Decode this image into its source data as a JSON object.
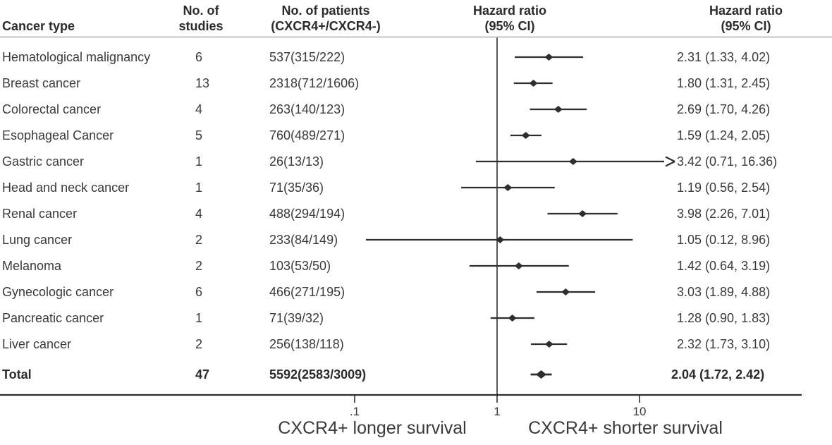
{
  "header": {
    "col_cancer_type": "Cancer type",
    "col_studies_line1": "No. of",
    "col_studies_line2": "studies",
    "col_patients_line1": "No. of patients",
    "col_patients_line2": "(CXCR4+/CXCR4-)",
    "col_plot_line1": "Hazard ratio",
    "col_plot_line2": "(95% CI)",
    "col_hr_line1": "Hazard ratio",
    "col_hr_line2": "(95% CI)"
  },
  "axis": {
    "scale_note": "log10",
    "ticks": [
      {
        "label": ".1",
        "value": 0.1
      },
      {
        "label": "1",
        "value": 1
      },
      {
        "label": "10",
        "value": 10
      }
    ],
    "left_label": "CXCR4+ longer survival",
    "right_label": "CXCR4+ shorter survival"
  },
  "colors": {
    "text": "#3a3a3a",
    "bold_text": "#2b2b2b",
    "plot_line": "#2e2e2e",
    "header_rule": "#c4c4c4",
    "background": "#ffffff"
  },
  "chart_data": {
    "type": "forest",
    "x_scale": "log10",
    "xlim": [
      0.08,
      18
    ],
    "reference_value": 1,
    "columns": [
      "Cancer type",
      "No. of studies",
      "No. of patients (CXCR4+/CXCR4-)",
      "Hazard ratio (95% CI)"
    ],
    "rows": [
      {
        "cancer_type": "Hematological malignancy",
        "studies": "6",
        "patients": "537(315/222)",
        "hr": 2.31,
        "ci_low": 1.33,
        "ci_high": 4.02,
        "hr_text": "2.31 (1.33, 4.02)",
        "is_total": false
      },
      {
        "cancer_type": "Breast cancer",
        "studies": "13",
        "patients": "2318(712/1606)",
        "hr": 1.8,
        "ci_low": 1.31,
        "ci_high": 2.45,
        "hr_text": "1.80 (1.31, 2.45)",
        "is_total": false
      },
      {
        "cancer_type": "Colorectal cancer",
        "studies": "4",
        "patients": "263(140/123)",
        "hr": 2.69,
        "ci_low": 1.7,
        "ci_high": 4.26,
        "hr_text": "2.69 (1.70, 4.26)",
        "is_total": false
      },
      {
        "cancer_type": "Esophageal Cancer",
        "studies": "5",
        "patients": "760(489/271)",
        "hr": 1.59,
        "ci_low": 1.24,
        "ci_high": 2.05,
        "hr_text": "1.59 (1.24, 2.05)",
        "is_total": false
      },
      {
        "cancer_type": "Gastric cancer",
        "studies": "1",
        "patients": "26(13/13)",
        "hr": 3.42,
        "ci_low": 0.71,
        "ci_high": 16.36,
        "hr_text": "3.42 (0.71, 16.36)",
        "is_total": false
      },
      {
        "cancer_type": "Head and neck cancer",
        "studies": "1",
        "patients": "71(35/36)",
        "hr": 1.19,
        "ci_low": 0.56,
        "ci_high": 2.54,
        "hr_text": "1.19 (0.56, 2.54)",
        "is_total": false
      },
      {
        "cancer_type": "Renal cancer",
        "studies": "4",
        "patients": "488(294/194)",
        "hr": 3.98,
        "ci_low": 2.26,
        "ci_high": 7.01,
        "hr_text": "3.98 (2.26, 7.01)",
        "is_total": false
      },
      {
        "cancer_type": "Lung cancer",
        "studies": "2",
        "patients": "233(84/149)",
        "hr": 1.05,
        "ci_low": 0.12,
        "ci_high": 8.96,
        "hr_text": "1.05 (0.12, 8.96)",
        "is_total": false
      },
      {
        "cancer_type": "Melanoma",
        "studies": "2",
        "patients": "103(53/50)",
        "hr": 1.42,
        "ci_low": 0.64,
        "ci_high": 3.19,
        "hr_text": "1.42 (0.64, 3.19)",
        "is_total": false
      },
      {
        "cancer_type": "Gynecologic cancer",
        "studies": "6",
        "patients": "466(271/195)",
        "hr": 3.03,
        "ci_low": 1.89,
        "ci_high": 4.88,
        "hr_text": "3.03 (1.89, 4.88)",
        "is_total": false
      },
      {
        "cancer_type": "Pancreatic cancer",
        "studies": "1",
        "patients": "71(39/32)",
        "hr": 1.28,
        "ci_low": 0.9,
        "ci_high": 1.83,
        "hr_text": "1.28 (0.90, 1.83)",
        "is_total": false
      },
      {
        "cancer_type": "Liver cancer",
        "studies": "2",
        "patients": "256(138/118)",
        "hr": 2.32,
        "ci_low": 1.73,
        "ci_high": 3.1,
        "hr_text": "2.32 (1.73, 3.10)",
        "is_total": false
      },
      {
        "cancer_type": "Total",
        "studies": "47",
        "patients": "5592(2583/3009)",
        "hr": 2.04,
        "ci_low": 1.72,
        "ci_high": 2.42,
        "hr_text": "2.04 (1.72, 2.42)",
        "is_total": true
      }
    ]
  }
}
